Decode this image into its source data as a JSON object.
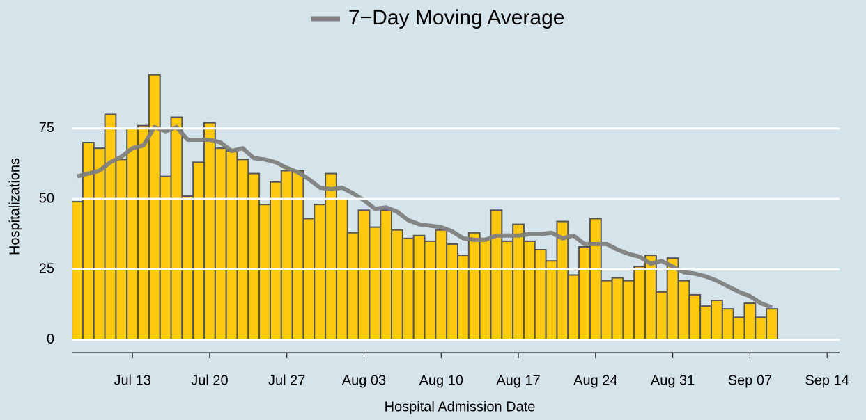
{
  "chart_data": {
    "type": "bar",
    "x_label": "Hospital Admission Date",
    "y_label": "Hospitalizations",
    "x": [
      "07-08",
      "07-09",
      "07-10",
      "07-11",
      "07-12",
      "07-13",
      "07-14",
      "07-15",
      "07-16",
      "07-17",
      "07-18",
      "07-19",
      "07-20",
      "07-21",
      "07-22",
      "07-23",
      "07-24",
      "07-25",
      "07-26",
      "07-27",
      "07-28",
      "07-29",
      "07-30",
      "07-31",
      "08-01",
      "08-02",
      "08-03",
      "08-04",
      "08-05",
      "08-06",
      "08-07",
      "08-08",
      "08-09",
      "08-10",
      "08-11",
      "08-12",
      "08-13",
      "08-14",
      "08-15",
      "08-16",
      "08-17",
      "08-18",
      "08-19",
      "08-20",
      "08-21",
      "08-22",
      "08-23",
      "08-24",
      "08-25",
      "08-26",
      "08-27",
      "08-28",
      "08-29",
      "08-30",
      "08-31",
      "09-01",
      "09-02",
      "09-03",
      "09-04",
      "09-05",
      "09-06",
      "09-07",
      "09-08",
      "09-09"
    ],
    "series": [
      {
        "type": "bar",
        "color": "#ffc90e",
        "values": [
          49,
          70,
          68,
          80,
          64,
          75,
          76,
          94,
          58,
          79,
          51,
          63,
          77,
          68,
          67,
          64,
          59,
          48,
          56,
          60,
          60,
          43,
          48,
          59,
          50,
          38,
          46,
          40,
          46,
          39,
          36,
          37,
          35,
          39,
          34,
          30,
          38,
          36,
          46,
          35,
          41,
          35,
          32,
          28,
          42,
          23,
          33,
          43,
          21,
          22,
          21,
          26,
          30,
          17,
          29,
          21,
          16,
          12,
          14,
          11,
          8,
          13,
          8,
          11
        ]
      },
      {
        "type": "line",
        "name": "7−Day Moving Average",
        "color": "#808080",
        "values": [
          58,
          59,
          60,
          63,
          65,
          68,
          69,
          75.5,
          74,
          75.5,
          71,
          71,
          71,
          70,
          67,
          68,
          64.5,
          64,
          63,
          61,
          59.5,
          57,
          54,
          53.5,
          54,
          52,
          49.5,
          46.5,
          47,
          45.5,
          42.5,
          41,
          40.5,
          40,
          38.5,
          36,
          35.5,
          35.5,
          37,
          37,
          37,
          37.5,
          37.5,
          38,
          36,
          37,
          34,
          34,
          34,
          32,
          30.5,
          29.5,
          27,
          28,
          26,
          24,
          23.5,
          22.5,
          21,
          19,
          17,
          15.5,
          13,
          11.5
        ]
      }
    ],
    "xlim": [
      "07-08",
      "09-15"
    ],
    "xticks": [
      {
        "value": "07-13",
        "label": "Jul 13"
      },
      {
        "value": "07-20",
        "label": "Jul 20"
      },
      {
        "value": "07-27",
        "label": "Jul 27"
      },
      {
        "value": "08-03",
        "label": "Aug 03"
      },
      {
        "value": "08-10",
        "label": "Aug 10"
      },
      {
        "value": "08-17",
        "label": "Aug 17"
      },
      {
        "value": "08-24",
        "label": "Aug 24"
      },
      {
        "value": "08-31",
        "label": "Aug 31"
      },
      {
        "value": "09-07",
        "label": "Sep 07"
      },
      {
        "value": "09-14",
        "label": "Sep 14"
      }
    ],
    "ylim": [
      -4.5,
      98
    ],
    "yticks": [
      0,
      25,
      50,
      75
    ],
    "grid": true,
    "legend": "top"
  }
}
